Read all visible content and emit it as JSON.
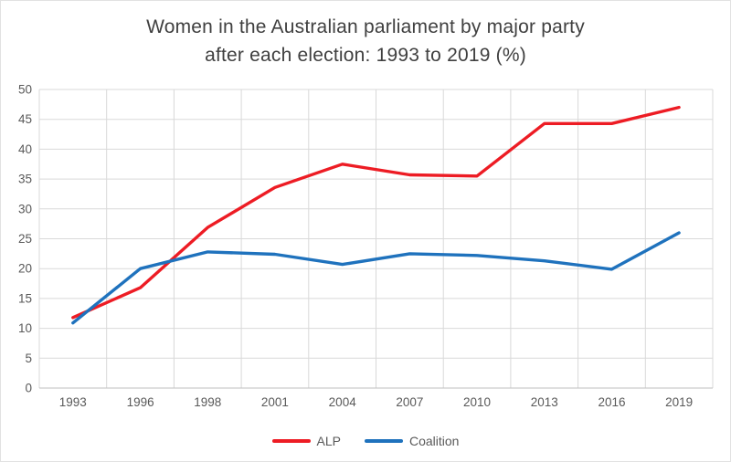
{
  "chart_data": {
    "type": "line",
    "title_lines": [
      "Women in the Australian parliament by major party",
      "after each election: 1993 to 2019 (%)"
    ],
    "categories": [
      "1993",
      "1996",
      "1998",
      "2001",
      "2004",
      "2007",
      "2010",
      "2013",
      "2016",
      "2019"
    ],
    "series": [
      {
        "name": "ALP",
        "color": "#ed1c24",
        "values": [
          11.8,
          16.8,
          26.9,
          33.6,
          37.5,
          35.7,
          35.5,
          44.3,
          44.3,
          47.0
        ]
      },
      {
        "name": "Coalition",
        "color": "#1f72bd",
        "values": [
          10.9,
          20.0,
          22.8,
          22.4,
          20.7,
          22.5,
          22.2,
          21.3,
          19.9,
          26.0
        ]
      }
    ],
    "ylim": [
      0,
      50
    ],
    "y_ticks": [
      0,
      5,
      10,
      15,
      20,
      25,
      30,
      35,
      40,
      45,
      50
    ],
    "grid": "on",
    "legend_position": "bottom",
    "xlabel": "",
    "ylabel": "",
    "colors": {
      "title_text": "#404040",
      "axis_text": "#595959",
      "gridline": "#d9d9d9",
      "axis_line": "#bfbfbf"
    }
  }
}
